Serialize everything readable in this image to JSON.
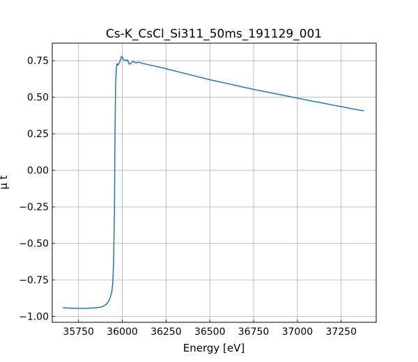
{
  "chart_data": {
    "type": "line",
    "title": "Cs-K_CsCl_Si311_50ms_191129_001",
    "xlabel": "Energy [eV]",
    "ylabel": "μ t",
    "xlim": [
      35600,
      37450
    ],
    "ylim": [
      -1.04,
      0.87
    ],
    "grid": true,
    "x_ticks": [
      35750,
      36000,
      36250,
      36500,
      36750,
      37000,
      37250
    ],
    "x_tick_labels": [
      "35750",
      "36000",
      "36250",
      "36500",
      "36750",
      "37000",
      "37250"
    ],
    "y_ticks": [
      -1.0,
      -0.75,
      -0.5,
      -0.25,
      0.0,
      0.25,
      0.5,
      0.75
    ],
    "y_tick_labels": [
      "−1.00",
      "−0.75",
      "−0.50",
      "−0.25",
      "0.00",
      "0.25",
      "0.50",
      "0.75"
    ],
    "series": [
      {
        "color": "#1f77b4",
        "x": [
          35660,
          35700,
          35750,
          35800,
          35850,
          35880,
          35900,
          35910,
          35920,
          35930,
          35940,
          35945,
          35950,
          35955,
          35958,
          35962,
          35966,
          35970,
          35975,
          35985,
          35995,
          36000,
          36005,
          36010,
          36020,
          36030,
          36040,
          36050,
          36060,
          36070,
          36080,
          36090,
          36100,
          36110,
          36120,
          36130,
          36150,
          36200,
          36250,
          36300,
          36350,
          36400,
          36450,
          36500,
          36550,
          36600,
          36650,
          36700,
          36750,
          36800,
          36850,
          36900,
          36950,
          37000,
          37050,
          37100,
          37150,
          37200,
          37250,
          37300,
          37350,
          37380
        ],
        "y": [
          -0.94,
          -0.943,
          -0.945,
          -0.944,
          -0.94,
          -0.935,
          -0.925,
          -0.915,
          -0.9,
          -0.875,
          -0.83,
          -0.78,
          -0.65,
          -0.3,
          0.2,
          0.6,
          0.7,
          0.73,
          0.72,
          0.74,
          0.78,
          0.775,
          0.76,
          0.755,
          0.75,
          0.755,
          0.725,
          0.735,
          0.745,
          0.74,
          0.735,
          0.74,
          0.738,
          0.735,
          0.73,
          0.728,
          0.722,
          0.71,
          0.695,
          0.68,
          0.665,
          0.65,
          0.635,
          0.62,
          0.607,
          0.594,
          0.58,
          0.567,
          0.554,
          0.542,
          0.53,
          0.518,
          0.506,
          0.494,
          0.482,
          0.47,
          0.459,
          0.447,
          0.436,
          0.424,
          0.413,
          0.407
        ]
      }
    ]
  }
}
